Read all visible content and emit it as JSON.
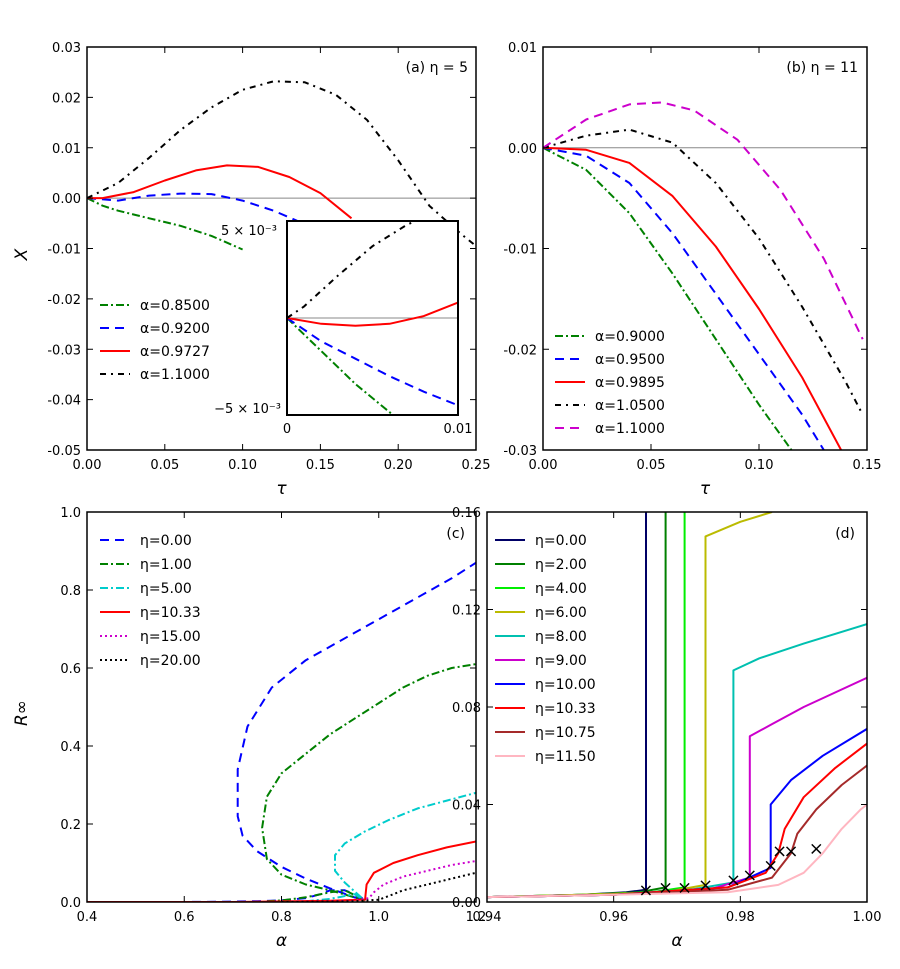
{
  "figure": "four-panel scientific figure",
  "chart_data": [
    {
      "id": "a",
      "type": "line",
      "panel_label": "(a)",
      "panel_param": "η = 5",
      "xlabel": "τ",
      "ylabel": "X",
      "xlim": [
        0,
        0.25
      ],
      "ylim": [
        -0.05,
        0.03
      ],
      "xticks": [
        "0.00",
        "0.05",
        "0.10",
        "0.15",
        "0.20",
        "0.25"
      ],
      "yticks": [
        "-0.05",
        "-0.04",
        "-0.03",
        "-0.02",
        "-0.01",
        "0.00",
        "0.01",
        "0.02",
        "0.03"
      ],
      "legend_position": "lower-left",
      "series": [
        {
          "name": "α=0.8500",
          "color": "#008000",
          "style": "dashdot",
          "x": [
            0,
            0.01,
            0.02,
            0.04,
            0.06,
            0.08,
            0.1
          ],
          "y": [
            0,
            -0.0015,
            -0.0025,
            -0.004,
            -0.0055,
            -0.0075,
            -0.0102
          ]
        },
        {
          "name": "α=0.9200",
          "color": "#0000ff",
          "style": "dashed",
          "x": [
            0,
            0.02,
            0.04,
            0.06,
            0.08,
            0.1,
            0.12,
            0.135
          ],
          "y": [
            0,
            -0.0005,
            0.0005,
            0.0009,
            0.0008,
            -0.0005,
            -0.0025,
            -0.0045
          ]
        },
        {
          "name": "α=0.9727",
          "color": "#ff0000",
          "style": "solid",
          "x": [
            0,
            0.01,
            0.03,
            0.05,
            0.07,
            0.09,
            0.11,
            0.13,
            0.15,
            0.17
          ],
          "y": [
            0,
            0,
            0.0012,
            0.0035,
            0.0055,
            0.0065,
            0.0062,
            0.0042,
            0.001,
            -0.004
          ]
        },
        {
          "name": "α=1.1000",
          "color": "#000000",
          "style": "dashdot2",
          "x": [
            0,
            0.02,
            0.04,
            0.06,
            0.08,
            0.1,
            0.12,
            0.14,
            0.16,
            0.18,
            0.2,
            0.22,
            0.24,
            0.25
          ],
          "y": [
            0,
            0.003,
            0.008,
            0.0135,
            0.018,
            0.0215,
            0.0232,
            0.023,
            0.0205,
            0.0155,
            0.0075,
            -0.0015,
            -0.007,
            -0.0095
          ]
        }
      ],
      "inset": {
        "xlim": [
          0,
          0.01
        ],
        "ylim": [
          -0.005,
          0.005
        ],
        "xticks": [
          "0",
          "0.01"
        ],
        "ytick_top": "5 × 10⁻³",
        "ytick_bottom": "−5 × 10⁻³",
        "series": [
          {
            "name": "α=0.8500",
            "color": "#008000",
            "style": "dashdot",
            "x": [
              0,
              0.002,
              0.004,
              0.0062
            ],
            "y": [
              0,
              -0.0017,
              -0.0034,
              -0.005
            ]
          },
          {
            "name": "α=0.9200",
            "color": "#0000ff",
            "style": "dashed",
            "x": [
              0,
              0.002,
              0.004,
              0.006,
              0.008,
              0.01
            ],
            "y": [
              0,
              -0.0012,
              -0.0021,
              -0.003,
              -0.0038,
              -0.0045
            ]
          },
          {
            "name": "α=0.9727",
            "color": "#ff0000",
            "style": "solid",
            "x": [
              0,
              0.002,
              0.004,
              0.006,
              0.008,
              0.01
            ],
            "y": [
              0,
              -0.0003,
              -0.0004,
              -0.0003,
              0.0001,
              0.0008
            ]
          },
          {
            "name": "α=1.1000",
            "color": "#000000",
            "style": "dashdot2",
            "x": [
              0,
              0.001,
              0.003,
              0.005,
              0.007,
              0.0075
            ],
            "y": [
              0,
              0.0006,
              0.0022,
              0.0037,
              0.0048,
              0.005
            ]
          }
        ]
      }
    },
    {
      "id": "b",
      "type": "line",
      "panel_label": "(b)",
      "panel_param": "η = 11",
      "xlabel": "τ",
      "ylabel": "",
      "xlim": [
        0,
        0.15
      ],
      "ylim": [
        -0.03,
        0.01
      ],
      "xticks": [
        "0.00",
        "0.05",
        "0.10",
        "0.15"
      ],
      "yticks": [
        "-0.03",
        "-0.02",
        "-0.01",
        "0.00",
        "0.01"
      ],
      "legend_position": "lower-left",
      "series": [
        {
          "name": "α=0.9000",
          "color": "#008000",
          "style": "dashdot",
          "x": [
            0,
            0.02,
            0.04,
            0.06,
            0.08,
            0.1,
            0.115
          ],
          "y": [
            0,
            -0.0022,
            -0.0065,
            -0.0125,
            -0.019,
            -0.0255,
            -0.03
          ]
        },
        {
          "name": "α=0.9500",
          "color": "#0000ff",
          "style": "dashed",
          "x": [
            0,
            0.02,
            0.04,
            0.06,
            0.08,
            0.1,
            0.12,
            0.13
          ],
          "y": [
            0,
            -0.0008,
            -0.0035,
            -0.0085,
            -0.0145,
            -0.0205,
            -0.0265,
            -0.03
          ]
        },
        {
          "name": "α=0.9895",
          "color": "#ff0000",
          "style": "solid",
          "x": [
            0,
            0.02,
            0.04,
            0.06,
            0.08,
            0.1,
            0.12,
            0.138
          ],
          "y": [
            0,
            -0.0002,
            -0.0015,
            -0.0048,
            -0.0098,
            -0.016,
            -0.0228,
            -0.03
          ]
        },
        {
          "name": "α=1.0500",
          "color": "#000000",
          "style": "dashdot2",
          "x": [
            0,
            0.02,
            0.04,
            0.06,
            0.08,
            0.1,
            0.12,
            0.14,
            0.148
          ],
          "y": [
            0,
            0.0012,
            0.0018,
            0.0005,
            -0.0035,
            -0.009,
            -0.0158,
            -0.0232,
            -0.0265
          ]
        },
        {
          "name": "α=1.1000",
          "color": "#cc00cc",
          "style": "dashed",
          "x": [
            0,
            0.02,
            0.04,
            0.055,
            0.07,
            0.09,
            0.11,
            0.13,
            0.148
          ],
          "y": [
            0,
            0.0028,
            0.0043,
            0.0045,
            0.0037,
            0.0008,
            -0.0042,
            -0.011,
            -0.019
          ]
        }
      ]
    },
    {
      "id": "c",
      "type": "line",
      "panel_label": "(c)",
      "xlabel": "α",
      "ylabel": "R∞",
      "xlim": [
        0.4,
        1.2
      ],
      "ylim": [
        0,
        1.0
      ],
      "xticks": [
        "0.4",
        "0.6",
        "0.8",
        "1.0",
        "1.2"
      ],
      "yticks": [
        "0.0",
        "0.2",
        "0.4",
        "0.6",
        "0.8",
        "1.0"
      ],
      "legend_position": "upper-left",
      "series": [
        {
          "name": "η=0.00",
          "color": "#0000ff",
          "style": "dashed",
          "x": [
            0.4,
            0.6,
            0.7,
            0.75,
            0.8,
            0.85,
            0.88,
            0.9,
            0.93,
            0.96,
            0.97,
            0.95,
            0.9,
            0.85,
            0.8,
            0.75,
            0.72,
            0.71,
            0.71,
            0.73,
            0.78,
            0.85,
            0.95,
            1.05,
            1.15,
            1.2
          ],
          "y": [
            0,
            0,
            0.001,
            0.002,
            0.004,
            0.01,
            0.02,
            0.03,
            0.03,
            0.015,
            0.005,
            0.012,
            0.035,
            0.06,
            0.09,
            0.13,
            0.17,
            0.22,
            0.34,
            0.45,
            0.55,
            0.62,
            0.69,
            0.76,
            0.83,
            0.87
          ]
        },
        {
          "name": "η=1.00",
          "color": "#008000",
          "style": "dashdot",
          "x": [
            0.77,
            0.8,
            0.85,
            0.9,
            0.93,
            0.96,
            0.97,
            0.95,
            0.9,
            0.85,
            0.8,
            0.77,
            0.76,
            0.77,
            0.8,
            0.85,
            0.9,
            0.95,
            1.0,
            1.05,
            1.1,
            1.15,
            1.2
          ],
          "y": [
            0.002,
            0.004,
            0.012,
            0.025,
            0.03,
            0.012,
            0.004,
            0.012,
            0.03,
            0.045,
            0.07,
            0.11,
            0.19,
            0.27,
            0.33,
            0.38,
            0.43,
            0.47,
            0.51,
            0.55,
            0.58,
            0.6,
            0.61
          ]
        },
        {
          "name": "η=5.00",
          "color": "#00cccc",
          "style": "dashdot",
          "x": [
            0.85,
            0.9,
            0.95,
            0.97,
            0.93,
            0.91,
            0.91,
            0.93,
            0.97,
            1.02,
            1.08,
            1.14,
            1.2
          ],
          "y": [
            0.002,
            0.008,
            0.02,
            0.005,
            0.05,
            0.08,
            0.12,
            0.15,
            0.18,
            0.21,
            0.24,
            0.26,
            0.28
          ]
        },
        {
          "name": "η=10.33",
          "color": "#ff0000",
          "style": "solid",
          "x": [
            0.4,
            0.7,
            0.9,
            0.96,
            0.972,
            0.973,
            0.975,
            0.99,
            1.03,
            1.08,
            1.14,
            1.2
          ],
          "y": [
            0,
            0,
            0.003,
            0.006,
            0.006,
            0.02,
            0.045,
            0.075,
            0.1,
            0.12,
            0.14,
            0.155
          ]
        },
        {
          "name": "η=15.00",
          "color": "#cc00cc",
          "style": "dotted",
          "x": [
            0.8,
            0.95,
            0.98,
            0.99,
            1.01,
            1.05,
            1.1,
            1.15,
            1.2
          ],
          "y": [
            0,
            0.003,
            0.01,
            0.025,
            0.045,
            0.065,
            0.08,
            0.095,
            0.105
          ]
        },
        {
          "name": "η=20.00",
          "color": "#000000",
          "style": "dotted",
          "x": [
            0.8,
            0.95,
            1.0,
            1.02,
            1.05,
            1.1,
            1.15,
            1.2
          ],
          "y": [
            0,
            0.002,
            0.006,
            0.015,
            0.03,
            0.045,
            0.06,
            0.075
          ]
        }
      ]
    },
    {
      "id": "d",
      "type": "line",
      "panel_label": "(d)",
      "xlabel": "α",
      "ylabel": "",
      "xlim": [
        0.94,
        1.0
      ],
      "ylim": [
        0,
        0.16
      ],
      "xticks": [
        "0.94",
        "0.96",
        "0.98",
        "1.00"
      ],
      "yticks": [
        "0.00",
        "0.04",
        "0.08",
        "0.12",
        "0.16"
      ],
      "legend_position": "upper-left",
      "series": [
        {
          "name": "η=0.00",
          "color": "#000066",
          "x": [
            0.94,
            0.955,
            0.962,
            0.9651,
            0.9651
          ],
          "y": [
            0.002,
            0.003,
            0.004,
            0.005,
            0.16
          ]
        },
        {
          "name": "η=2.00",
          "color": "#008000",
          "x": [
            0.94,
            0.955,
            0.964,
            0.9682,
            0.9682
          ],
          "y": [
            0.002,
            0.003,
            0.004,
            0.006,
            0.16
          ]
        },
        {
          "name": "η=4.00",
          "color": "#00ee00",
          "x": [
            0.94,
            0.955,
            0.966,
            0.9712,
            0.9712
          ],
          "y": [
            0.002,
            0.003,
            0.004,
            0.006,
            0.16
          ]
        },
        {
          "name": "η=6.00",
          "color": "#bbbb00",
          "x": [
            0.94,
            0.955,
            0.968,
            0.9745,
            0.9745,
            0.98,
            0.985
          ],
          "y": [
            0.002,
            0.003,
            0.004,
            0.007,
            0.15,
            0.156,
            0.16
          ]
        },
        {
          "name": "η=8.00",
          "color": "#00c0b0",
          "x": [
            0.94,
            0.96,
            0.972,
            0.9789,
            0.9789,
            0.983,
            0.99,
            1.0
          ],
          "y": [
            0.002,
            0.003,
            0.005,
            0.008,
            0.095,
            0.1,
            0.106,
            0.114
          ]
        },
        {
          "name": "η=9.00",
          "color": "#cc00cc",
          "x": [
            0.94,
            0.96,
            0.975,
            0.9815,
            0.9815,
            0.985,
            0.99,
            1.0
          ],
          "y": [
            0.002,
            0.003,
            0.005,
            0.01,
            0.068,
            0.073,
            0.08,
            0.092
          ]
        },
        {
          "name": "η=10.00",
          "color": "#0000ff",
          "x": [
            0.94,
            0.96,
            0.978,
            0.9848,
            0.9848,
            0.988,
            0.993,
            1.0
          ],
          "y": [
            0.002,
            0.003,
            0.006,
            0.014,
            0.04,
            0.05,
            0.06,
            0.071
          ]
        },
        {
          "name": "η=10.33",
          "color": "#ff0000",
          "x": [
            0.94,
            0.96,
            0.978,
            0.984,
            0.986,
            0.987,
            0.99,
            0.995,
            1.0
          ],
          "y": [
            0.002,
            0.003,
            0.006,
            0.012,
            0.02,
            0.03,
            0.043,
            0.055,
            0.065
          ]
        },
        {
          "name": "η=10.75",
          "color": "#a52a2a",
          "x": [
            0.94,
            0.96,
            0.978,
            0.985,
            0.988,
            0.989,
            0.992,
            0.996,
            1.0
          ],
          "y": [
            0.002,
            0.003,
            0.005,
            0.01,
            0.02,
            0.028,
            0.038,
            0.048,
            0.056
          ]
        },
        {
          "name": "η=11.50",
          "color": "#ffb6c1",
          "x": [
            0.94,
            0.96,
            0.978,
            0.986,
            0.99,
            0.993,
            0.996,
            0.999,
            1.0
          ],
          "y": [
            0.002,
            0.003,
            0.004,
            0.007,
            0.012,
            0.02,
            0.03,
            0.038,
            0.04
          ]
        }
      ],
      "markers": {
        "symbol": "×",
        "x": [
          0.9651,
          0.9682,
          0.9712,
          0.9745,
          0.9789,
          0.9815,
          0.9848,
          0.9862,
          0.988,
          0.992
        ],
        "y": [
          0.005,
          0.006,
          0.006,
          0.007,
          0.009,
          0.011,
          0.015,
          0.021,
          0.021,
          0.022
        ]
      }
    }
  ]
}
